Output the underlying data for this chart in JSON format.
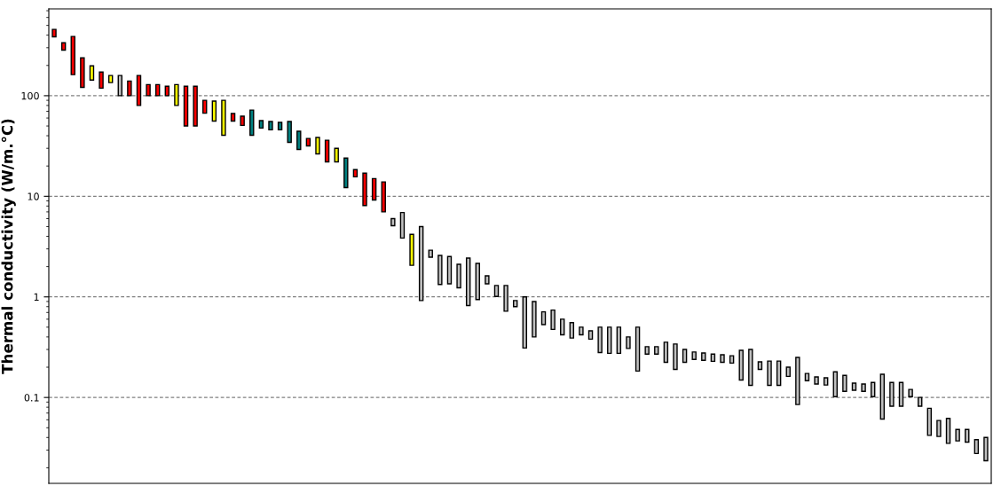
{
  "chart_data": {
    "type": "bar",
    "ylabel": "Thermal conductivity (W/m.°C)",
    "log": "y",
    "grid": "y",
    "tick_labels": "y",
    "ylim": [
      0.014,
      730
    ],
    "yticks": [
      0.1,
      1,
      10,
      100
    ],
    "categories": [
      null,
      null,
      null,
      null,
      null,
      null,
      null,
      null,
      null,
      null,
      null,
      null,
      null,
      null,
      null,
      null,
      null,
      null,
      null,
      null,
      null,
      null,
      null,
      null,
      null,
      null,
      null,
      null,
      null,
      null,
      null,
      null,
      null,
      null,
      null,
      null,
      null,
      null,
      null,
      null,
      null,
      null,
      null,
      null,
      null,
      null,
      null,
      null,
      null,
      null,
      null,
      null,
      null,
      null,
      null,
      null,
      null,
      null,
      null,
      null,
      null,
      null,
      null,
      null,
      null,
      null,
      null,
      null,
      null,
      null,
      null,
      null,
      null,
      null,
      null,
      null,
      null,
      null,
      null,
      null,
      null,
      null,
      null,
      null,
      null,
      null,
      null,
      null,
      null,
      null,
      null,
      null,
      null,
      null,
      null,
      null,
      null,
      null,
      null,
      null
    ],
    "base": [
      385,
      284,
      162,
      121,
      143,
      119,
      135,
      100,
      100,
      80,
      100,
      100,
      100,
      80,
      50,
      50,
      67,
      56,
      40.5,
      56,
      50.7,
      40.5,
      47.7,
      45.8,
      45.8,
      34.4,
      29.2,
      31.7,
      26.4,
      22,
      22,
      12.2,
      15.6,
      8.1,
      9.2,
      7.0,
      5.1,
      3.85,
      2.06,
      0.92,
      2.48,
      1.33,
      1.35,
      1.23,
      0.82,
      0.94,
      1.35,
      1.01,
      0.72,
      0.8,
      0.31,
      0.4,
      0.53,
      0.475,
      0.42,
      0.39,
      0.42,
      0.38,
      0.28,
      0.275,
      0.275,
      0.307,
      0.183,
      0.27,
      0.27,
      0.224,
      0.19,
      0.224,
      0.239,
      0.234,
      0.229,
      0.224,
      0.22,
      0.149,
      0.132,
      0.19,
      0.132,
      0.132,
      0.162,
      0.085,
      0.147,
      0.136,
      0.133,
      0.102,
      0.115,
      0.118,
      0.115,
      0.102,
      0.061,
      0.082,
      0.082,
      0.102,
      0.082,
      0.042,
      0.041,
      0.035,
      0.037,
      0.036,
      0.0277,
      0.0235
    ],
    "values": [
      71,
      52,
      226,
      117,
      55,
      53,
      24,
      59,
      40,
      79,
      29,
      29,
      24,
      49,
      74,
      74,
      23,
      32.5,
      49.5,
      10.5,
      11.9,
      31.5,
      8.8,
      9.6,
      8.5,
      21,
      15.1,
      5.9,
      12,
      14.1,
      8,
      11.8,
      2.8,
      8.9,
      5.8,
      6.9,
      0.9,
      3.05,
      2.12,
      4.08,
      0.43,
      1.25,
      1.17,
      0.88,
      1.61,
      1.21,
      0.27,
      0.29,
      0.58,
      0.12,
      0.69,
      0.5,
      0.18,
      0.265,
      0.18,
      0.165,
      0.08,
      0.08,
      0.22,
      0.225,
      0.225,
      0.093,
      0.317,
      0.05,
      0.05,
      0.13,
      0.15,
      0.076,
      0.044,
      0.043,
      0.041,
      0.042,
      0.04,
      0.145,
      0.168,
      0.036,
      0.098,
      0.098,
      0.038,
      0.165,
      0.026,
      0.024,
      0.024,
      0.078,
      0.051,
      0.021,
      0.021,
      0.039,
      0.109,
      0.059,
      0.059,
      0.018,
      0.018,
      0.036,
      0.018,
      0.027,
      0.011,
      0.012,
      0.0103,
      0.0165
    ],
    "colors": [
      "#ff0000",
      "#ff0000",
      "#ff0000",
      "#ff0000",
      "#ffff00",
      "#ff0000",
      "#ffff00",
      "#c0c0c0",
      "#ff0000",
      "#ff0000",
      "#ff0000",
      "#ff0000",
      "#ff0000",
      "#ffff00",
      "#ff0000",
      "#ff0000",
      "#ff0000",
      "#ffff00",
      "#ffff00",
      "#ff0000",
      "#ff0000",
      "#008080",
      "#008080",
      "#008080",
      "#008080",
      "#008080",
      "#008080",
      "#ff0000",
      "#ffff00",
      "#ff0000",
      "#ffff00",
      "#008080",
      "#ff0000",
      "#ff0000",
      "#ff0000",
      "#ff0000",
      "#c0c0c0",
      "#c0c0c0",
      "#ffff00",
      "#c0c0c0",
      "#c0c0c0",
      "#c0c0c0",
      "#c0c0c0",
      "#c0c0c0",
      "#c0c0c0",
      "#c0c0c0",
      "#c0c0c0",
      "#c0c0c0",
      "#c0c0c0",
      "#c0c0c0",
      "#c0c0c0",
      "#c0c0c0",
      "#c0c0c0",
      "#c0c0c0",
      "#c0c0c0",
      "#c0c0c0",
      "#c0c0c0",
      "#c0c0c0",
      "#c0c0c0",
      "#c0c0c0",
      "#c0c0c0",
      "#c0c0c0",
      "#c0c0c0",
      "#c0c0c0",
      "#c0c0c0",
      "#c0c0c0",
      "#c0c0c0",
      "#c0c0c0",
      "#c0c0c0",
      "#c0c0c0",
      "#c0c0c0",
      "#c0c0c0",
      "#c0c0c0",
      "#c0c0c0",
      "#c0c0c0",
      "#c0c0c0",
      "#c0c0c0",
      "#c0c0c0",
      "#c0c0c0",
      "#c0c0c0",
      "#c0c0c0",
      "#c0c0c0",
      "#c0c0c0",
      "#c0c0c0",
      "#c0c0c0",
      "#c0c0c0",
      "#c0c0c0",
      "#c0c0c0",
      "#c0c0c0",
      "#c0c0c0",
      "#c0c0c0",
      "#c0c0c0",
      "#c0c0c0",
      "#c0c0c0",
      "#c0c0c0",
      "#c0c0c0",
      "#c0c0c0",
      "#c0c0c0",
      "#c0c0c0",
      "#c0c0c0"
    ]
  }
}
